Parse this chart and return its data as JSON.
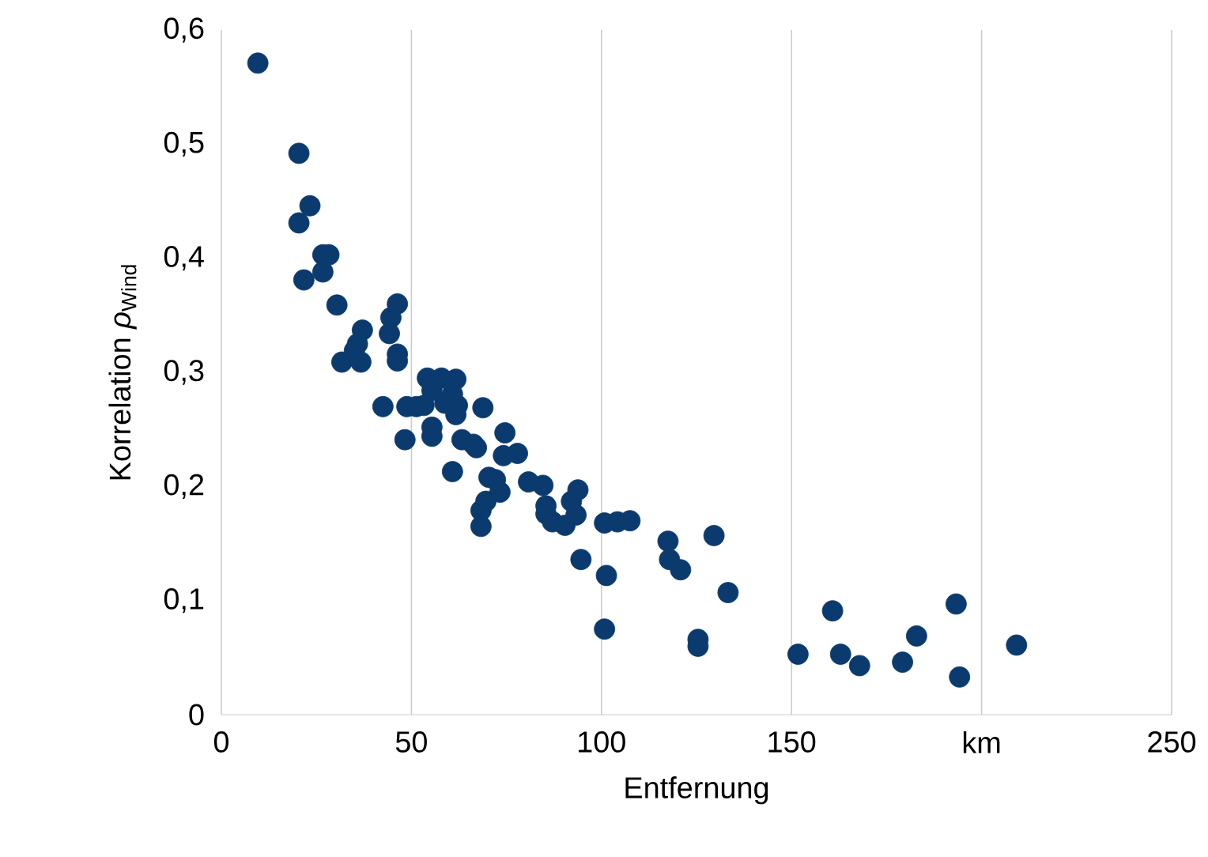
{
  "chart_data": {
    "type": "scatter",
    "xlabel": "Entfernung",
    "ylabel": "Korrelation *ρ*$_{Wind}$",
    "color": "#0b3a6e",
    "marker": "circle",
    "grid": "x",
    "xlim": [
      0,
      250
    ],
    "ylim": [
      0,
      0.6
    ],
    "xticks": [
      0,
      50,
      100,
      150,
      {
        "value": 200,
        "label": "km"
      },
      250
    ],
    "yticks": [
      0,
      {
        "value": 0.1,
        "label": "0,1"
      },
      {
        "value": 0.2,
        "label": "0,2"
      },
      {
        "value": 0.3,
        "label": "0,3"
      },
      {
        "value": 0.4,
        "label": "0,4"
      },
      {
        "value": 0.5,
        "label": "0,5"
      },
      {
        "value": 0.6,
        "label": "0,6"
      }
    ],
    "x": [
      9.6,
      20.4,
      20.4,
      23.3,
      21.7,
      26.7,
      28.3,
      26.7,
      30.4,
      31.7,
      35,
      36.7,
      37.1,
      35.8,
      42.5,
      44.2,
      44.6,
      46.3,
      46.3,
      46.3,
      48.3,
      48.8,
      51.3,
      53.3,
      54.2,
      55.4,
      55.4,
      55.4,
      57.9,
      58.8,
      60.4,
      60.8,
      61.7,
      61.7,
      60.8,
      63.3,
      62.1,
      66.3,
      67.1,
      68.8,
      68.3,
      68.3,
      69.6,
      70.4,
      72.1,
      73.3,
      74.2,
      74.6,
      77.9,
      80.8,
      84.6,
      85.4,
      85.4,
      87.1,
      88.3,
      89.6,
      90.4,
      91.3,
      92.1,
      93.3,
      93.8,
      94.6,
      100.8,
      101.3,
      100.8,
      104.2,
      107.5,
      117.5,
      117.9,
      120.8,
      129.6,
      133.3,
      125.4,
      125.4,
      151.7,
      160.8,
      162.9,
      167.9,
      179.2,
      182.9,
      193.3,
      194.2,
      209.2
    ],
    "values": [
      0.571,
      0.492,
      0.431,
      0.446,
      0.381,
      0.403,
      0.403,
      0.388,
      0.359,
      0.309,
      0.319,
      0.309,
      0.337,
      0.325,
      0.27,
      0.334,
      0.348,
      0.36,
      0.316,
      0.31,
      0.241,
      0.27,
      0.27,
      0.271,
      0.295,
      0.284,
      0.252,
      0.244,
      0.295,
      0.273,
      null,
      0.281,
      0.263,
      0.294,
      0.213,
      0.241,
      0.271,
      0.237,
      0.234,
      0.269,
      0.179,
      0.165,
      0.187,
      0.208,
      0.206,
      0.195,
      0.227,
      0.247,
      0.229,
      0.204,
      0.201,
      0.183,
      0.176,
      0.169,
      null,
      null,
      0.166,
      null,
      0.187,
      0.175,
      0.197,
      0.136,
      0.168,
      0.122,
      0.075,
      0.169,
      0.17,
      0.152,
      0.136,
      0.127,
      0.157,
      0.107,
      0.066,
      0.06,
      0.053,
      0.091,
      0.053,
      0.043,
      0.046,
      0.069,
      0.097,
      0.033,
      0.061
    ]
  }
}
